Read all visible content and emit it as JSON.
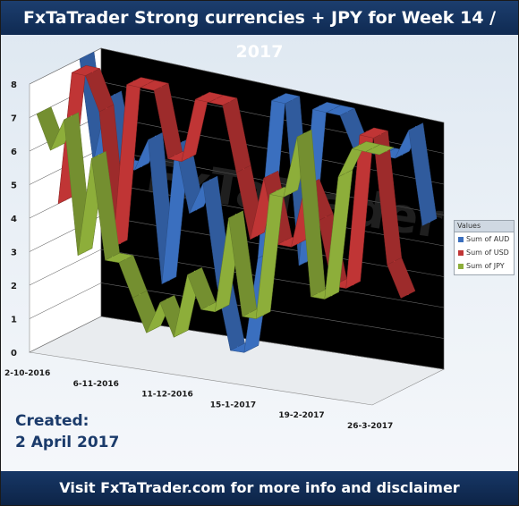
{
  "header": {
    "title": "FxTaTrader  Strong currencies + JPY for Week 14 / 2017"
  },
  "created": {
    "line1": "Created:",
    "line2": "2 April 2017"
  },
  "footer": {
    "text": "Visit FxTaTrader.com for more info and disclaimer"
  },
  "watermark": "FxTaTrader",
  "legend": {
    "title": "Values",
    "items": [
      {
        "label": "Sum of AUD",
        "color": "#3a6fbf"
      },
      {
        "label": "Sum of USD",
        "color": "#c03535"
      },
      {
        "label": "Sum of JPY",
        "color": "#8dae3a"
      }
    ]
  },
  "chart_data": {
    "type": "line",
    "title": "FxTaTrader  Strong currencies + JPY for Week 14 / 2017",
    "ylim": [
      0,
      8
    ],
    "y_ticks": [
      "0",
      "1",
      "2",
      "3",
      "4",
      "5",
      "6",
      "7",
      "8"
    ],
    "x_tick_labels": [
      "2-10-2016",
      "6-11-2016",
      "11-12-2016",
      "15-1-2017",
      "19-2-2017",
      "26-3-2017"
    ],
    "x_tick_positions": [
      0,
      5,
      10,
      15,
      20,
      25
    ],
    "n_points": 26,
    "background": "#000000",
    "series": [
      {
        "name": "Sum of AUD",
        "color": "#3a6fbf",
        "values": [
          8,
          5,
          7,
          5,
          5,
          6,
          1.7,
          6,
          4,
          5,
          2,
          0,
          0,
          3,
          8,
          8,
          3,
          8,
          8,
          8,
          7,
          7,
          7,
          7,
          8,
          5
        ]
      },
      {
        "name": "Sum of USD",
        "color": "#c03535",
        "values": [
          4,
          8,
          8,
          7,
          3,
          8,
          8,
          8,
          6,
          6,
          8,
          8,
          8,
          6,
          4,
          6,
          4,
          4,
          6,
          5,
          3,
          3,
          8,
          8,
          4,
          3
        ]
      },
      {
        "name": "Sum of JPY",
        "color": "#8dae3a",
        "values": [
          7,
          6,
          7,
          3,
          6,
          3,
          3,
          2,
          1,
          2,
          1,
          3,
          2,
          2,
          5,
          2,
          2,
          6,
          6,
          8,
          3,
          3,
          7,
          8,
          8,
          8
        ]
      }
    ]
  }
}
